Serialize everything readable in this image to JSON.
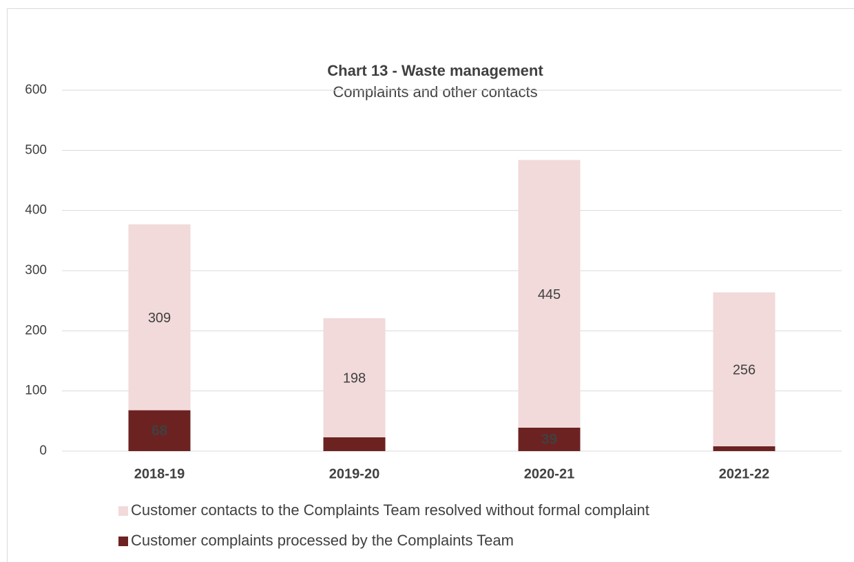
{
  "chart_data": {
    "type": "stacked_bar",
    "title": "Chart 13 - Waste management",
    "subtitle": "Complaints and other contacts",
    "categories": [
      "2018-19",
      "2019-20",
      "2020-21",
      "2021-22"
    ],
    "series": [
      {
        "name": "Customer complaints processed by the Complaints Team",
        "color": "#6d2222",
        "values": [
          68,
          23,
          39,
          8
        ]
      },
      {
        "name": "Customer contacts to the Complaints Team resolved without formal complaint",
        "color": "#f2dada",
        "values": [
          309,
          198,
          445,
          256
        ]
      }
    ],
    "ylim": [
      0,
      600
    ],
    "yticks": [
      0,
      100,
      200,
      300,
      400,
      500,
      600
    ],
    "grid": true,
    "legend": "bottom"
  }
}
